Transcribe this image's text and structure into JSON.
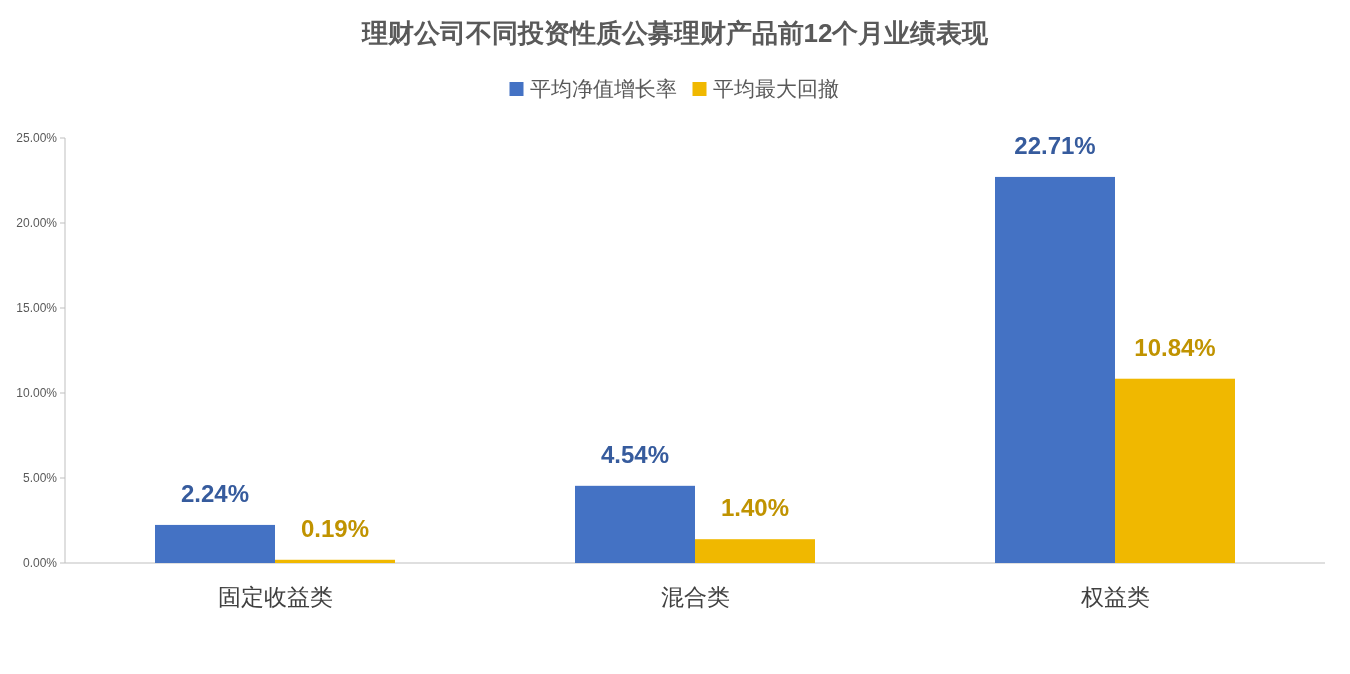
{
  "chart_data": {
    "type": "bar",
    "title": "理财公司不同投资性质公募理财产品前12个月业绩表现",
    "categories": [
      "固定收益类",
      "混合类",
      "权益类"
    ],
    "series": [
      {
        "name": "平均净值增长率",
        "color": "#4472c4",
        "values": [
          2.24,
          4.54,
          22.71
        ],
        "value_labels": [
          "2.24%",
          "4.54%",
          "22.71%"
        ]
      },
      {
        "name": "平均最大回撤",
        "color": "#f0b800",
        "values": [
          0.19,
          1.4,
          10.84
        ],
        "value_labels": [
          "0.19%",
          "1.40%",
          "10.84%"
        ]
      }
    ],
    "ylim": [
      0,
      25
    ],
    "yticks": [
      {
        "value": 0,
        "label": "0.00%"
      },
      {
        "value": 5,
        "label": "5.00%"
      },
      {
        "value": 10,
        "label": "10.00%"
      },
      {
        "value": 15,
        "label": "15.00%"
      },
      {
        "value": 20,
        "label": "20.00%"
      },
      {
        "value": 25,
        "label": "25.00%"
      }
    ],
    "grid": false,
    "legend": "top"
  }
}
